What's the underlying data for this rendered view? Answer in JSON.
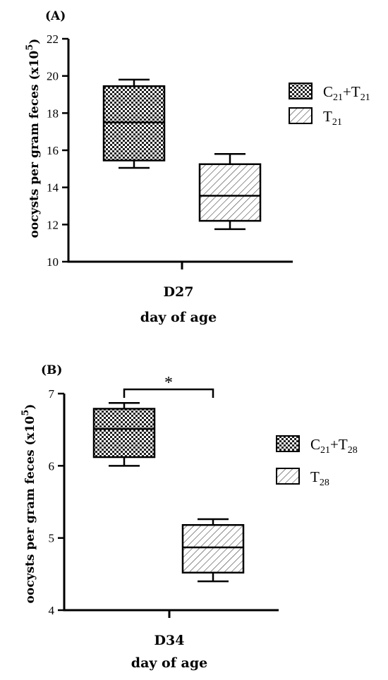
{
  "chart_data": [
    {
      "type": "box",
      "panel_label": "(A)",
      "ylabel": "oocysts per gram feces (x10",
      "ylabel_exponent": "5",
      "ylabel_close": ")",
      "ylim": [
        10,
        22
      ],
      "yticks": [
        10,
        12,
        14,
        16,
        18,
        20,
        22
      ],
      "category": "D27",
      "xlabel": "day of age",
      "legend_position": "right",
      "series": [
        {
          "name_main": "C",
          "name_sub1": "21",
          "name_mid": "+T",
          "name_sub2": "21",
          "pattern": "checker",
          "min": 15.05,
          "q1": 15.45,
          "median": 17.5,
          "q3": 19.45,
          "max": 19.8
        },
        {
          "name_main": "T",
          "name_sub1": "21",
          "name_mid": "",
          "name_sub2": "",
          "pattern": "hatch",
          "min": 11.75,
          "q1": 12.2,
          "median": 13.55,
          "q3": 15.25,
          "max": 15.8
        }
      ]
    },
    {
      "type": "box",
      "panel_label": "(B)",
      "ylabel": "oocysts per gram feces (x10",
      "ylabel_exponent": "5",
      "ylabel_close": ")",
      "ylim": [
        4,
        7
      ],
      "yticks": [
        4,
        5,
        6,
        7
      ],
      "category": "D34",
      "xlabel": "day of age",
      "legend_position": "right",
      "significance": "*",
      "series": [
        {
          "name_main": "C",
          "name_sub1": "21",
          "name_mid": "+T",
          "name_sub2": "28",
          "pattern": "checker",
          "min": 6.0,
          "q1": 6.12,
          "median": 6.51,
          "q3": 6.79,
          "max": 6.87
        },
        {
          "name_main": "T",
          "name_sub1": "28",
          "name_mid": "",
          "name_sub2": "",
          "pattern": "hatch",
          "min": 4.4,
          "q1": 4.52,
          "median": 4.87,
          "q3": 5.18,
          "max": 5.26
        }
      ]
    }
  ]
}
